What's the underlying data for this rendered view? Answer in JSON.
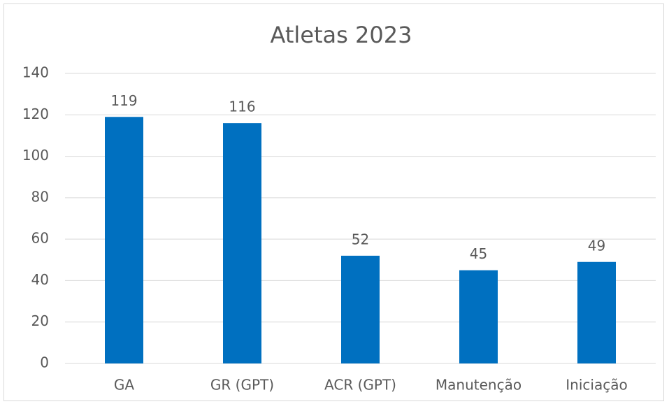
{
  "chart_data": {
    "type": "bar",
    "title": "Atletas 2023",
    "categories": [
      "GA",
      "GR (GPT)",
      "ACR (GPT)",
      "Manutenção",
      "Iniciação"
    ],
    "values": [
      119,
      116,
      52,
      45,
      49
    ],
    "color": "#0070c0",
    "ylim": [
      0,
      140
    ],
    "yticks": [
      0,
      20,
      40,
      60,
      80,
      100,
      120,
      140
    ],
    "grid": true
  }
}
